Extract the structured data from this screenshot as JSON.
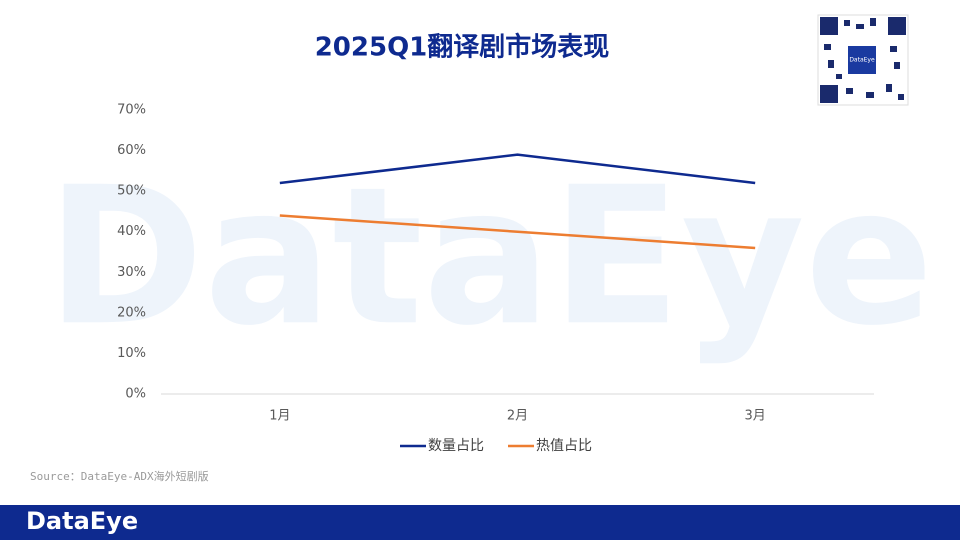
{
  "watermark": "DataEye",
  "qr_label": "DataEye",
  "source": "Source：DataEye-ADX海外短剧版",
  "footer_logo": "DataEye",
  "chart_data": {
    "type": "line",
    "title": "2025Q1翻译剧市场表现",
    "categories": [
      "1月",
      "2月",
      "3月"
    ],
    "series": [
      {
        "name": "数量占比",
        "color": "#0e2a8f",
        "values": [
          52,
          59,
          52
        ]
      },
      {
        "name": "热值占比",
        "color": "#ed7d31",
        "values": [
          44,
          40,
          36
        ]
      }
    ],
    "ylim": [
      0,
      70
    ],
    "yticks": [
      {
        "value": 0,
        "label": "0%"
      },
      {
        "value": 10,
        "label": "10%"
      },
      {
        "value": 20,
        "label": "20%"
      },
      {
        "value": 30,
        "label": "30%"
      },
      {
        "value": 40,
        "label": "40%"
      },
      {
        "value": 50,
        "label": "50%"
      },
      {
        "value": 60,
        "label": "60%"
      },
      {
        "value": 70,
        "label": "70%"
      }
    ],
    "legend": "bottom"
  }
}
